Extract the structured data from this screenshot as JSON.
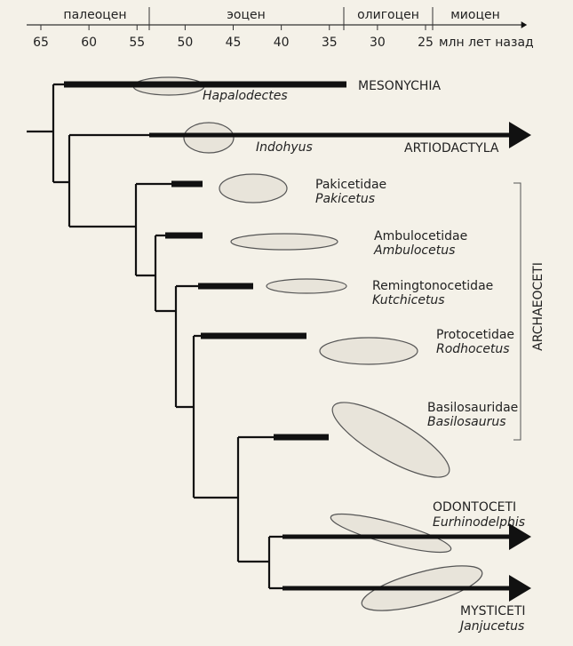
{
  "axis": {
    "epochs": [
      "палеоцен",
      "эоцен",
      "олигоцен",
      "миоцен"
    ],
    "ticks": [
      65,
      60,
      55,
      50,
      45,
      40,
      35,
      30,
      25
    ],
    "unit": "млн лет назад"
  },
  "taxa": [
    {
      "group": "MESONYCHIA",
      "genus": "Hapalodectes"
    },
    {
      "group": "ARTIODACTYLA",
      "genus": "Indohyus"
    },
    {
      "group": "Pakicetidae",
      "genus": "Pakicetus"
    },
    {
      "group": "Ambulocetidae",
      "genus": "Ambulocetus"
    },
    {
      "group": "Remingtonocetidae",
      "genus": "Kutchicetus"
    },
    {
      "group": "Protocetidae",
      "genus": "Rodhocetus"
    },
    {
      "group": "Basilosauridae",
      "genus": "Basilosaurus"
    },
    {
      "group": "ODONTOCETI",
      "genus": "Eurhinodelphis"
    },
    {
      "group": "MYSTICETI",
      "genus": "Janjucetus"
    }
  ],
  "clade": "ARCHAEOCETI"
}
